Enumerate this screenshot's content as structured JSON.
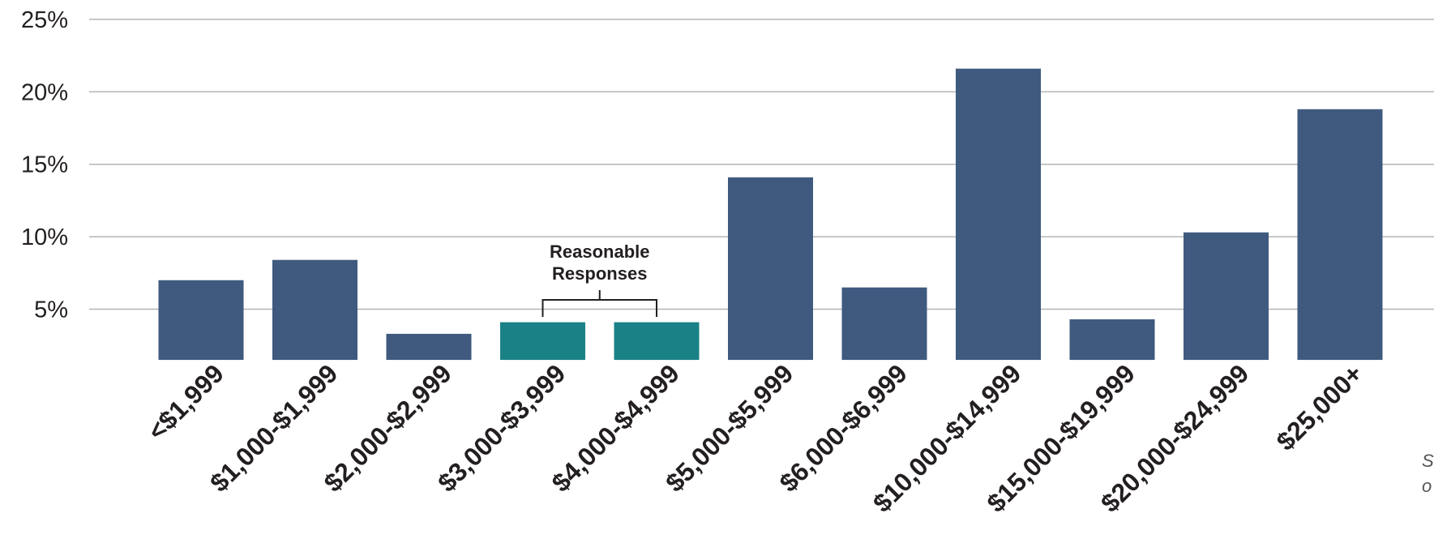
{
  "chart_data": {
    "type": "bar",
    "title": "",
    "xlabel": "",
    "ylabel": "",
    "ylim": [
      1.5,
      25
    ],
    "yticks": [
      5,
      10,
      15,
      20,
      25
    ],
    "ytick_labels": [
      "5%",
      "10%",
      "15%",
      "20%",
      "25%"
    ],
    "grid": true,
    "categories": [
      "<$1,999",
      "$1,000-$1,999",
      "$2,000-$2,999",
      "$3,000-$3,999",
      "$4,000-$4,999",
      "$5,000-$5,999",
      "$6,000-$6,999",
      "$10,000-$14,999",
      "$15,000-$19,999",
      "$20,000-$24,999",
      "$25,000+"
    ],
    "values": [
      7.0,
      8.4,
      3.3,
      4.1,
      4.1,
      14.1,
      6.5,
      21.6,
      4.3,
      10.3,
      18.8
    ],
    "highlighted": [
      3,
      4
    ],
    "colors": {
      "default": "#3f5a7e",
      "highlight": "#1a8286",
      "grid": "#b4b4b4"
    },
    "annotation": {
      "line1": "Reasonable",
      "line2": "Responses",
      "spans": [
        3,
        4
      ]
    },
    "source_note": {
      "line1": "Sc",
      "line2": "o"
    }
  }
}
